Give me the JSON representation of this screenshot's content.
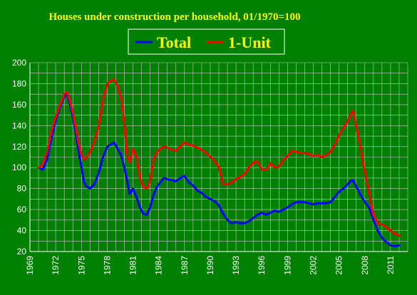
{
  "chart_data": {
    "type": "line",
    "title": "Houses under construction per household, 01/1970=100",
    "xlabel": "",
    "ylabel": "",
    "xlim": [
      1969,
      2013
    ],
    "ylim": [
      20,
      200
    ],
    "grid": true,
    "legend_position": "top-center",
    "x_tick_labels": [
      "1969",
      "1972",
      "1975",
      "1978",
      "1981",
      "1984",
      "1987",
      "1990",
      "1993",
      "1996",
      "1999",
      "2002",
      "2005",
      "2008",
      "2011"
    ],
    "y_tick_labels": [
      "20",
      "40",
      "60",
      "80",
      "100",
      "120",
      "140",
      "160",
      "180",
      "200"
    ],
    "series": [
      {
        "name": "Total",
        "color": "#0000ff",
        "x": [
          1970.0,
          1970.5,
          1971.0,
          1971.5,
          1972.0,
          1972.5,
          1973.0,
          1973.3,
          1973.6,
          1974.0,
          1974.3,
          1974.6,
          1975.0,
          1975.3,
          1975.6,
          1976.0,
          1976.5,
          1977.0,
          1977.5,
          1978.0,
          1978.4,
          1978.8,
          1979.2,
          1979.6,
          1980.0,
          1980.3,
          1980.6,
          1981.0,
          1981.4,
          1981.8,
          1982.2,
          1982.6,
          1983.0,
          1983.4,
          1983.8,
          1984.2,
          1984.6,
          1985.0,
          1985.5,
          1986.0,
          1986.5,
          1987.0,
          1987.5,
          1988.0,
          1988.5,
          1989.0,
          1989.5,
          1990.0,
          1990.5,
          1991.0,
          1991.5,
          1992.0,
          1992.5,
          1993.0,
          1993.5,
          1994.0,
          1994.5,
          1995.0,
          1995.5,
          1996.0,
          1996.5,
          1997.0,
          1997.5,
          1998.0,
          1998.5,
          1999.0,
          1999.5,
          2000.0,
          2000.5,
          2001.0,
          2001.5,
          2002.0,
          2002.5,
          2003.0,
          2003.5,
          2004.0,
          2004.5,
          2005.0,
          2005.5,
          2006.0,
          2006.3,
          2006.6,
          2007.0,
          2007.5,
          2008.0,
          2008.5,
          2009.0,
          2009.5,
          2010.0,
          2010.5,
          2011.0,
          2011.5,
          2012.0
        ],
        "values": [
          100,
          98,
          108,
          128,
          145,
          158,
          168,
          170,
          162,
          148,
          135,
          118,
          100,
          86,
          82,
          80,
          84,
          95,
          110,
          120,
          122,
          124,
          118,
          112,
          100,
          88,
          75,
          80,
          72,
          62,
          56,
          55,
          62,
          74,
          82,
          86,
          90,
          89,
          88,
          87,
          90,
          92,
          86,
          83,
          78,
          76,
          72,
          70,
          68,
          64,
          56,
          50,
          47,
          48,
          47,
          47,
          49,
          52,
          55,
          57,
          55,
          57,
          59,
          58,
          60,
          62,
          65,
          67,
          67,
          67,
          66,
          65,
          66,
          66,
          66,
          67,
          72,
          77,
          80,
          84,
          87,
          88,
          82,
          74,
          67,
          62,
          50,
          40,
          33,
          29,
          26,
          25,
          26
        ]
      },
      {
        "name": "1-Unit",
        "color": "#ff0000",
        "x": [
          1970.0,
          1970.5,
          1971.0,
          1971.5,
          1972.0,
          1972.5,
          1973.0,
          1973.3,
          1973.6,
          1974.0,
          1974.3,
          1974.6,
          1975.0,
          1975.3,
          1975.6,
          1976.0,
          1976.5,
          1977.0,
          1977.5,
          1978.0,
          1978.4,
          1978.8,
          1979.2,
          1979.6,
          1980.0,
          1980.3,
          1980.6,
          1981.0,
          1981.4,
          1981.8,
          1982.2,
          1982.6,
          1983.0,
          1983.4,
          1983.8,
          1984.2,
          1984.6,
          1985.0,
          1985.5,
          1986.0,
          1986.5,
          1987.0,
          1987.5,
          1988.0,
          1988.5,
          1989.0,
          1989.5,
          1990.0,
          1990.5,
          1991.0,
          1991.5,
          1992.0,
          1992.5,
          1993.0,
          1993.5,
          1994.0,
          1994.5,
          1995.0,
          1995.5,
          1996.0,
          1996.5,
          1997.0,
          1997.5,
          1998.0,
          1998.5,
          1999.0,
          1999.5,
          2000.0,
          2000.5,
          2001.0,
          2001.5,
          2002.0,
          2002.5,
          2003.0,
          2003.5,
          2004.0,
          2004.5,
          2005.0,
          2005.5,
          2006.0,
          2006.3,
          2006.6,
          2007.0,
          2007.5,
          2008.0,
          2008.5,
          2009.0,
          2009.5,
          2010.0,
          2010.5,
          2011.0,
          2011.5,
          2012.0
        ],
        "values": [
          100,
          103,
          115,
          135,
          148,
          160,
          170,
          172,
          165,
          152,
          140,
          125,
          112,
          108,
          110,
          115,
          125,
          140,
          165,
          180,
          183,
          184,
          178,
          166,
          142,
          112,
          105,
          118,
          110,
          90,
          82,
          80,
          88,
          108,
          115,
          118,
          120,
          119,
          117,
          116,
          120,
          124,
          122,
          121,
          119,
          117,
          114,
          110,
          106,
          100,
          84,
          84,
          86,
          89,
          91,
          94,
          100,
          105,
          106,
          98,
          98,
          104,
          100,
          101,
          107,
          111,
          116,
          115,
          114,
          114,
          113,
          111,
          112,
          110,
          112,
          115,
          122,
          131,
          138,
          144,
          150,
          154,
          140,
          118,
          95,
          75,
          55,
          47,
          46,
          43,
          40,
          37,
          35
        ]
      }
    ]
  }
}
